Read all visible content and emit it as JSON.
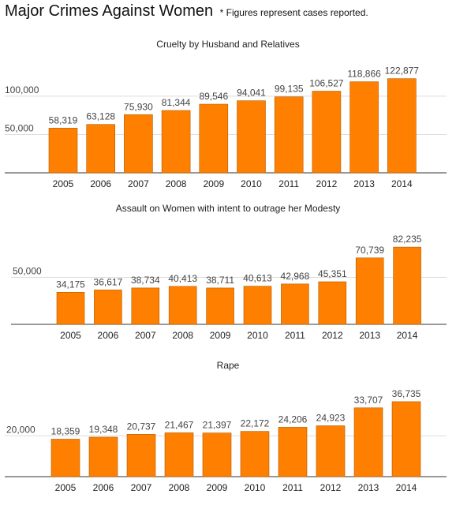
{
  "header": {
    "title": "Major Crimes Against Women",
    "subtitle": "* Figures represent cases reported."
  },
  "chart_data": [
    {
      "type": "bar",
      "title": "Cruelty by Husband and Relatives",
      "categories": [
        "2005",
        "2006",
        "2007",
        "2008",
        "2009",
        "2010",
        "2011",
        "2012",
        "2013",
        "2014"
      ],
      "values": [
        58319,
        63128,
        75930,
        81344,
        89546,
        94041,
        99135,
        106527,
        118866,
        122877
      ],
      "value_labels": [
        "58,319",
        "63,128",
        "75,930",
        "81,344",
        "89,546",
        "94,041",
        "99,135",
        "106,527",
        "118,866",
        "122,877"
      ],
      "y_ticks": [
        50000,
        100000
      ],
      "y_tick_labels": [
        "50,000",
        "100,000"
      ],
      "ylim": [
        0,
        150000
      ],
      "color": "#ff8000",
      "grid": true
    },
    {
      "type": "bar",
      "title": "Assault on Women with intent to outrage her Modesty",
      "categories": [
        "2005",
        "2006",
        "2007",
        "2008",
        "2009",
        "2010",
        "2011",
        "2012",
        "2013",
        "2014"
      ],
      "values": [
        34175,
        36617,
        38734,
        40413,
        38711,
        40613,
        42968,
        45351,
        70739,
        82235
      ],
      "value_labels": [
        "34,175",
        "36,617",
        "38,734",
        "40,413",
        "38,711",
        "40,613",
        "42,968",
        "45,351",
        "70,739",
        "82,235"
      ],
      "y_ticks": [
        50000
      ],
      "y_tick_labels": [
        "50,000"
      ],
      "ylim": [
        0,
        100000
      ],
      "color": "#ff8000",
      "grid": true
    },
    {
      "type": "bar",
      "title": "Rape",
      "categories": [
        "2005",
        "2006",
        "2007",
        "2008",
        "2009",
        "2010",
        "2011",
        "2012",
        "2013",
        "2014"
      ],
      "values": [
        18359,
        19348,
        20737,
        21467,
        21397,
        22172,
        24206,
        24923,
        33707,
        36735
      ],
      "value_labels": [
        "18,359",
        "19,348",
        "20,737",
        "21,467",
        "21,397",
        "22,172",
        "24,206",
        "24,923",
        "33,707",
        "36,735"
      ],
      "y_ticks": [
        20000
      ],
      "y_tick_labels": [
        "20,000"
      ],
      "ylim": [
        0,
        45000
      ],
      "color": "#ff8000",
      "grid": true
    }
  ]
}
